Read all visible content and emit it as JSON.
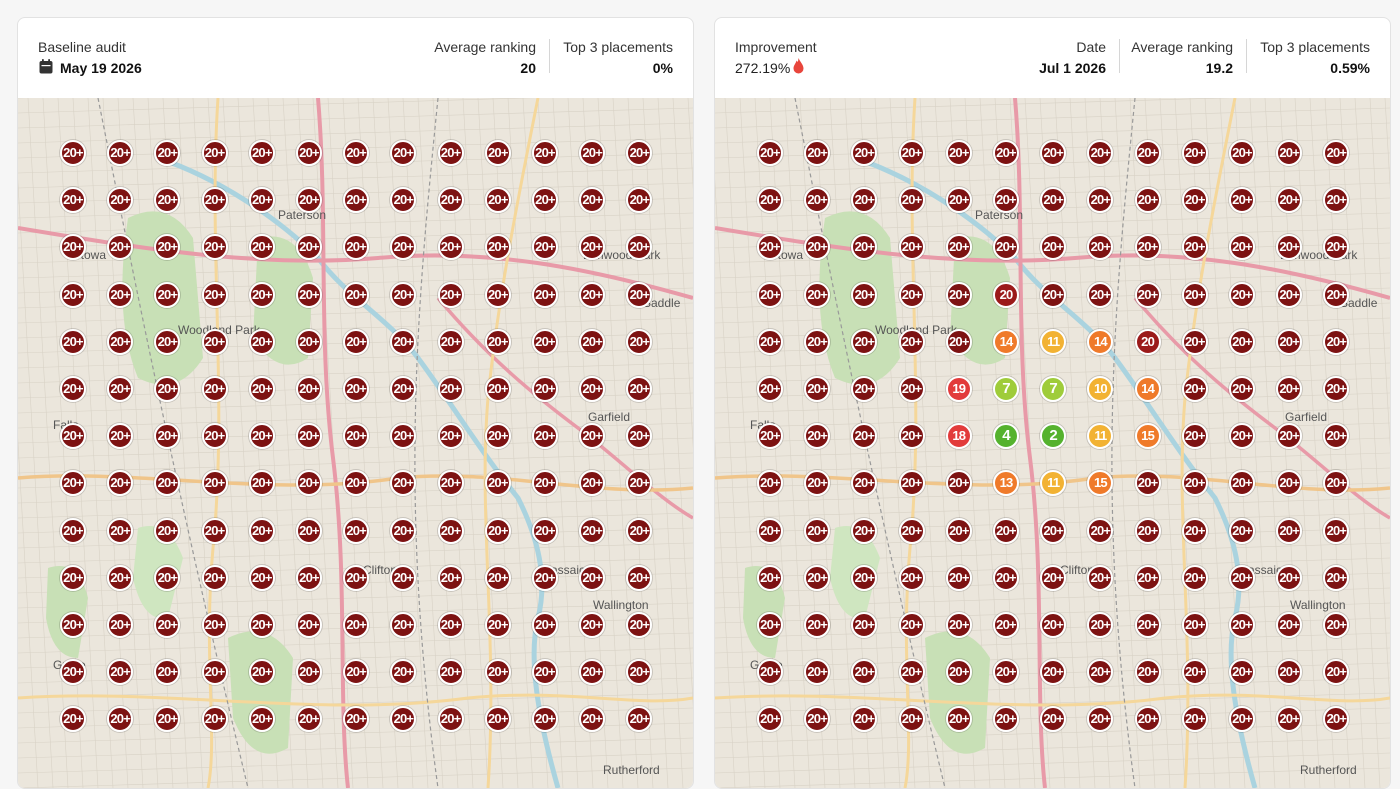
{
  "colors": {
    "rank_20plus": "#7d1212",
    "rank_20": "#9b1a1a",
    "rank_18_19": "#e23b3b",
    "rank_13_15": "#ef7a2a",
    "rank_10_11": "#f2b233",
    "rank_7": "#9fcc3a",
    "rank_2_4": "#55b22e",
    "improvement_icon": "#e8453c"
  },
  "baseline": {
    "audit_label": "Baseline audit",
    "date": "May 19 2026",
    "calendar_icon": "calendar-icon",
    "avg_label": "Average ranking",
    "avg_value": "20",
    "top3_label": "Top 3 placements",
    "top3_value": "0%",
    "grid": [
      [
        "20+",
        "20+",
        "20+",
        "20+",
        "20+",
        "20+",
        "20+",
        "20+",
        "20+",
        "20+",
        "20+",
        "20+",
        "20+"
      ],
      [
        "20+",
        "20+",
        "20+",
        "20+",
        "20+",
        "20+",
        "20+",
        "20+",
        "20+",
        "20+",
        "20+",
        "20+",
        "20+"
      ],
      [
        "20+",
        "20+",
        "20+",
        "20+",
        "20+",
        "20+",
        "20+",
        "20+",
        "20+",
        "20+",
        "20+",
        "20+",
        "20+"
      ],
      [
        "20+",
        "20+",
        "20+",
        "20+",
        "20+",
        "20+",
        "20+",
        "20+",
        "20+",
        "20+",
        "20+",
        "20+",
        "20+"
      ],
      [
        "20+",
        "20+",
        "20+",
        "20+",
        "20+",
        "20+",
        "20+",
        "20+",
        "20+",
        "20+",
        "20+",
        "20+",
        "20+"
      ],
      [
        "20+",
        "20+",
        "20+",
        "20+",
        "20+",
        "20+",
        "20+",
        "20+",
        "20+",
        "20+",
        "20+",
        "20+",
        "20+"
      ],
      [
        "20+",
        "20+",
        "20+",
        "20+",
        "20+",
        "20+",
        "20+",
        "20+",
        "20+",
        "20+",
        "20+",
        "20+",
        "20+"
      ],
      [
        "20+",
        "20+",
        "20+",
        "20+",
        "20+",
        "20+",
        "20+",
        "20+",
        "20+",
        "20+",
        "20+",
        "20+",
        "20+"
      ],
      [
        "20+",
        "20+",
        "20+",
        "20+",
        "20+",
        "20+",
        "20+",
        "20+",
        "20+",
        "20+",
        "20+",
        "20+",
        "20+"
      ],
      [
        "20+",
        "20+",
        "20+",
        "20+",
        "20+",
        "20+",
        "20+",
        "20+",
        "20+",
        "20+",
        "20+",
        "20+",
        "20+"
      ],
      [
        "20+",
        "20+",
        "20+",
        "20+",
        "20+",
        "20+",
        "20+",
        "20+",
        "20+",
        "20+",
        "20+",
        "20+",
        "20+"
      ],
      [
        "20+",
        "20+",
        "20+",
        "20+",
        "20+",
        "20+",
        "20+",
        "20+",
        "20+",
        "20+",
        "20+",
        "20+",
        "20+"
      ],
      [
        "20+",
        "20+",
        "20+",
        "20+",
        "20+",
        "20+",
        "20+",
        "20+",
        "20+",
        "20+",
        "20+",
        "20+",
        "20+"
      ]
    ]
  },
  "current": {
    "improvement_label": "Improvement",
    "improvement_value": "272.19%",
    "improvement_icon": "flame-icon",
    "date_label": "Date",
    "date": "Jul 1 2026",
    "avg_label": "Average ranking",
    "avg_value": "19.2",
    "top3_label": "Top 3 placements",
    "top3_value": "0.59%",
    "grid": [
      [
        "20+",
        "20+",
        "20+",
        "20+",
        "20+",
        "20+",
        "20+",
        "20+",
        "20+",
        "20+",
        "20+",
        "20+",
        "20+"
      ],
      [
        "20+",
        "20+",
        "20+",
        "20+",
        "20+",
        "20+",
        "20+",
        "20+",
        "20+",
        "20+",
        "20+",
        "20+",
        "20+"
      ],
      [
        "20+",
        "20+",
        "20+",
        "20+",
        "20+",
        "20+",
        "20+",
        "20+",
        "20+",
        "20+",
        "20+",
        "20+",
        "20+"
      ],
      [
        "20+",
        "20+",
        "20+",
        "20+",
        "20+",
        "20",
        "20+",
        "20+",
        "20+",
        "20+",
        "20+",
        "20+",
        "20+"
      ],
      [
        "20+",
        "20+",
        "20+",
        "20+",
        "20+",
        "14",
        "11",
        "14",
        "20",
        "20+",
        "20+",
        "20+",
        "20+"
      ],
      [
        "20+",
        "20+",
        "20+",
        "20+",
        "19",
        "7",
        "7",
        "10",
        "14",
        "20+",
        "20+",
        "20+",
        "20+"
      ],
      [
        "20+",
        "20+",
        "20+",
        "20+",
        "18",
        "4",
        "2",
        "11",
        "15",
        "20+",
        "20+",
        "20+",
        "20+"
      ],
      [
        "20+",
        "20+",
        "20+",
        "20+",
        "20+",
        "13",
        "11",
        "15",
        "20+",
        "20+",
        "20+",
        "20+",
        "20+"
      ],
      [
        "20+",
        "20+",
        "20+",
        "20+",
        "20+",
        "20+",
        "20+",
        "20+",
        "20+",
        "20+",
        "20+",
        "20+",
        "20+"
      ],
      [
        "20+",
        "20+",
        "20+",
        "20+",
        "20+",
        "20+",
        "20+",
        "20+",
        "20+",
        "20+",
        "20+",
        "20+",
        "20+"
      ],
      [
        "20+",
        "20+",
        "20+",
        "20+",
        "20+",
        "20+",
        "20+",
        "20+",
        "20+",
        "20+",
        "20+",
        "20+",
        "20+"
      ],
      [
        "20+",
        "20+",
        "20+",
        "20+",
        "20+",
        "20+",
        "20+",
        "20+",
        "20+",
        "20+",
        "20+",
        "20+",
        "20+"
      ],
      [
        "20+",
        "20+",
        "20+",
        "20+",
        "20+",
        "20+",
        "20+",
        "20+",
        "20+",
        "20+",
        "20+",
        "20+",
        "20+"
      ]
    ]
  },
  "map_labels": [
    "Paterson",
    "Totowa",
    "Elmwood Park",
    "Saddle",
    "Woodland Park",
    "Garfield",
    "Falls",
    "Clifton",
    "Passaic",
    "Wallington",
    "Grove",
    "Rutherford"
  ]
}
